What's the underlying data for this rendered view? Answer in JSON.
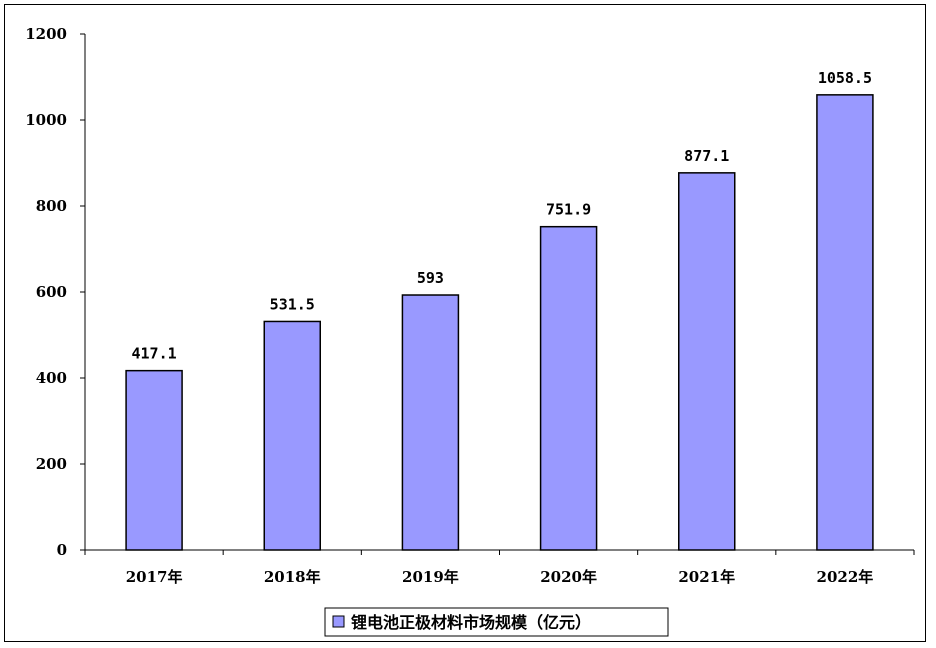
{
  "chart_data": {
    "type": "bar",
    "categories": [
      "2017年",
      "2018年",
      "2019年",
      "2020年",
      "2021年",
      "2022年"
    ],
    "series": [
      {
        "name": "锂电池正极材料市场规模（亿元）",
        "values": [
          417.1,
          531.5,
          593,
          751.9,
          877.1,
          1058.5
        ],
        "value_labels": [
          "417.1",
          "531.5",
          "593",
          "751.9",
          "877.1",
          "1058.5"
        ]
      }
    ],
    "title": "",
    "xlabel": "",
    "ylabel": "",
    "ylim": [
      0,
      1200
    ],
    "yticks": [
      "0",
      "200",
      "400",
      "600",
      "800",
      "1000",
      "1200"
    ],
    "grid": false,
    "legend_position": "bottom",
    "colors": {
      "bar_fill": "#9999ff",
      "bar_stroke": "#000000"
    }
  }
}
